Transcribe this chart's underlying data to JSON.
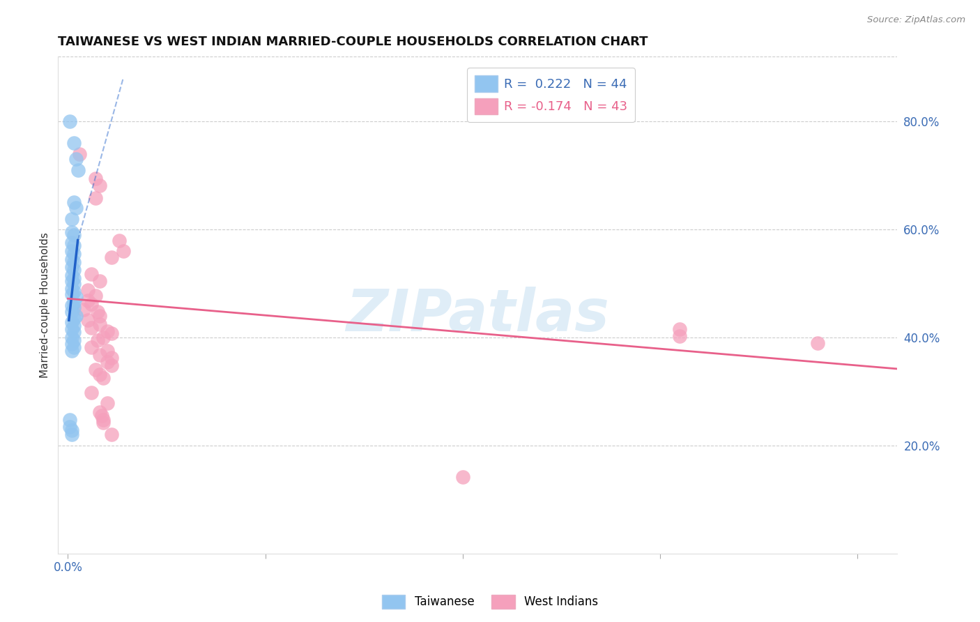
{
  "title": "TAIWANESE VS WEST INDIAN MARRIED-COUPLE HOUSEHOLDS CORRELATION CHART",
  "source": "Source: ZipAtlas.com",
  "ylabel": "Married-couple Households",
  "x_tick_labels": [
    "0.0%",
    "",
    "",
    "",
    ""
  ],
  "x_tick_positions": [
    0.0,
    0.1,
    0.2,
    0.3,
    0.4
  ],
  "y_tick_labels": [
    "20.0%",
    "40.0%",
    "60.0%",
    "80.0%"
  ],
  "y_tick_positions": [
    0.2,
    0.4,
    0.6,
    0.8
  ],
  "xlim": [
    -0.005,
    0.42
  ],
  "ylim": [
    0.0,
    0.92
  ],
  "watermark": "ZIPatlas",
  "legend_r_taiwanese": "R =  0.222",
  "legend_n_taiwanese": "N = 44",
  "legend_r_west_indian": "R = -0.174",
  "legend_n_west_indian": "N = 43",
  "taiwanese_color": "#92C5F0",
  "west_indian_color": "#F5A0BC",
  "taiwanese_line_color": "#2060C8",
  "west_indian_line_color": "#E8608A",
  "taiwanese_scatter": [
    [
      0.001,
      0.8
    ],
    [
      0.003,
      0.76
    ],
    [
      0.004,
      0.73
    ],
    [
      0.005,
      0.71
    ],
    [
      0.003,
      0.65
    ],
    [
      0.004,
      0.64
    ],
    [
      0.002,
      0.62
    ],
    [
      0.002,
      0.595
    ],
    [
      0.003,
      0.59
    ],
    [
      0.002,
      0.575
    ],
    [
      0.003,
      0.57
    ],
    [
      0.002,
      0.56
    ],
    [
      0.003,
      0.555
    ],
    [
      0.002,
      0.545
    ],
    [
      0.003,
      0.54
    ],
    [
      0.002,
      0.53
    ],
    [
      0.003,
      0.525
    ],
    [
      0.002,
      0.515
    ],
    [
      0.003,
      0.51
    ],
    [
      0.002,
      0.505
    ],
    [
      0.003,
      0.5
    ],
    [
      0.002,
      0.49
    ],
    [
      0.003,
      0.485
    ],
    [
      0.002,
      0.48
    ],
    [
      0.004,
      0.475
    ],
    [
      0.003,
      0.465
    ],
    [
      0.002,
      0.46
    ],
    [
      0.003,
      0.455
    ],
    [
      0.002,
      0.448
    ],
    [
      0.004,
      0.44
    ],
    [
      0.003,
      0.435
    ],
    [
      0.002,
      0.428
    ],
    [
      0.003,
      0.422
    ],
    [
      0.002,
      0.415
    ],
    [
      0.003,
      0.41
    ],
    [
      0.002,
      0.4
    ],
    [
      0.003,
      0.395
    ],
    [
      0.002,
      0.388
    ],
    [
      0.003,
      0.382
    ],
    [
      0.002,
      0.375
    ],
    [
      0.001,
      0.248
    ],
    [
      0.001,
      0.235
    ],
    [
      0.002,
      0.228
    ],
    [
      0.002,
      0.22
    ]
  ],
  "west_indian_scatter": [
    [
      0.006,
      0.74
    ],
    [
      0.014,
      0.695
    ],
    [
      0.016,
      0.682
    ],
    [
      0.014,
      0.658
    ],
    [
      0.026,
      0.58
    ],
    [
      0.028,
      0.56
    ],
    [
      0.022,
      0.548
    ],
    [
      0.012,
      0.518
    ],
    [
      0.016,
      0.505
    ],
    [
      0.01,
      0.488
    ],
    [
      0.014,
      0.478
    ],
    [
      0.01,
      0.468
    ],
    [
      0.012,
      0.462
    ],
    [
      0.008,
      0.452
    ],
    [
      0.015,
      0.448
    ],
    [
      0.016,
      0.44
    ],
    [
      0.01,
      0.432
    ],
    [
      0.016,
      0.425
    ],
    [
      0.012,
      0.418
    ],
    [
      0.02,
      0.412
    ],
    [
      0.022,
      0.408
    ],
    [
      0.018,
      0.4
    ],
    [
      0.015,
      0.395
    ],
    [
      0.012,
      0.382
    ],
    [
      0.02,
      0.375
    ],
    [
      0.016,
      0.368
    ],
    [
      0.022,
      0.362
    ],
    [
      0.02,
      0.355
    ],
    [
      0.022,
      0.348
    ],
    [
      0.014,
      0.34
    ],
    [
      0.016,
      0.332
    ],
    [
      0.018,
      0.325
    ],
    [
      0.012,
      0.298
    ],
    [
      0.02,
      0.278
    ],
    [
      0.016,
      0.262
    ],
    [
      0.017,
      0.255
    ],
    [
      0.018,
      0.248
    ],
    [
      0.018,
      0.242
    ],
    [
      0.022,
      0.22
    ],
    [
      0.2,
      0.142
    ],
    [
      0.31,
      0.415
    ],
    [
      0.31,
      0.402
    ],
    [
      0.38,
      0.39
    ]
  ],
  "taiwanese_trendline_solid": [
    [
      0.0005,
      0.432
    ],
    [
      0.005,
      0.58
    ]
  ],
  "taiwanese_trendline_dashed": [
    [
      0.005,
      0.58
    ],
    [
      0.028,
      0.88
    ]
  ],
  "west_indian_trendline": [
    [
      0.0,
      0.472
    ],
    [
      0.42,
      0.342
    ]
  ]
}
